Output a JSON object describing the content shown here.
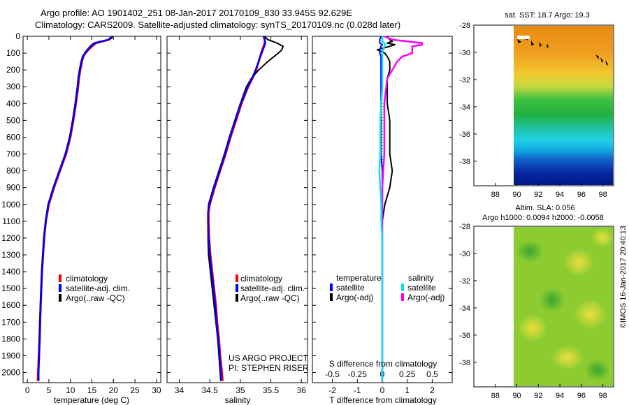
{
  "title": {
    "line1": "Argo profile: AO 1901402_251 08-Jan-2017 20170109_830 33.945S 92.629E",
    "line2": "Climatology: CARS2009. Satellite-adjusted climatology: synTS_20170109.nc (0.028d later)"
  },
  "stamp": "©IMOS 16-Jan-2017 20:40:13",
  "colors": {
    "climatology": "#ff0000",
    "satellite": "#0000ff",
    "argo": "#000000",
    "sal_satellite": "#00e5ee",
    "sal_argo": "#ff00ff"
  },
  "chart_data": [
    {
      "type": "line",
      "name": "temperature",
      "xlabel": "temperature (deg C)",
      "xlim": [
        -1,
        31
      ],
      "ylim": [
        2060,
        0
      ],
      "xticks": [
        "0",
        "5",
        "10",
        "15",
        "20",
        "25",
        "30"
      ],
      "xtick_values": [
        0,
        5,
        10,
        15,
        20,
        25,
        30
      ],
      "yticks": [
        "0",
        "100",
        "200",
        "300",
        "400",
        "500",
        "600",
        "700",
        "800",
        "900",
        "1000",
        "1100",
        "1200",
        "1300",
        "1400",
        "1500",
        "1600",
        "1700",
        "1800",
        "1900",
        "2000"
      ],
      "ytick_values": [
        0,
        100,
        200,
        300,
        400,
        500,
        600,
        700,
        800,
        900,
        1000,
        1100,
        1200,
        1300,
        1400,
        1500,
        1600,
        1700,
        1800,
        1900,
        2000
      ],
      "legend": [
        "climatology",
        "satellite-adj. clim.",
        "Argo(..raw -QC)"
      ],
      "depth": [
        0,
        10,
        20,
        30,
        40,
        50,
        60,
        80,
        100,
        120,
        150,
        200,
        250,
        300,
        400,
        500,
        600,
        700,
        800,
        900,
        1000,
        1100,
        1200,
        1400,
        1600,
        1800,
        2000,
        2050
      ],
      "series": [
        {
          "name": "climatology",
          "values": [
            19.6,
            19.4,
            19.0,
            17.5,
            16.0,
            15.5,
            15.0,
            14.2,
            13.5,
            13.0,
            12.7,
            12.3,
            12.0,
            11.8,
            11.3,
            10.7,
            10.0,
            9.0,
            7.6,
            6.2,
            5.0,
            4.3,
            3.9,
            3.4,
            3.1,
            2.8,
            2.5,
            2.4
          ]
        },
        {
          "name": "satellite",
          "values": [
            19.5,
            19.3,
            18.8,
            17.3,
            15.8,
            15.3,
            14.8,
            14.0,
            13.4,
            12.9,
            12.6,
            12.2,
            11.9,
            11.7,
            11.2,
            10.6,
            9.9,
            8.9,
            7.5,
            6.1,
            4.9,
            4.3,
            3.9,
            3.4,
            3.1,
            2.9,
            2.6,
            2.6
          ]
        },
        {
          "name": "argo",
          "values": [
            19.8,
            19.6,
            19.0,
            17.0,
            15.5,
            15.0,
            14.6,
            13.9,
            13.3,
            12.8,
            12.5,
            12.1,
            11.8,
            11.6,
            11.1,
            10.5,
            9.8,
            8.8,
            7.4,
            6.0,
            4.8,
            4.2,
            3.8,
            3.3,
            3.0,
            2.8,
            2.6,
            2.6
          ]
        }
      ]
    },
    {
      "type": "line",
      "name": "salinity",
      "xlabel": "salinity",
      "xlim": [
        33.8,
        36.1
      ],
      "ylim": [
        2060,
        0
      ],
      "xticks": [
        "34",
        "34.5",
        "35",
        "35.5",
        "36"
      ],
      "xtick_values": [
        34,
        34.5,
        35,
        35.5,
        36
      ],
      "legend": [
        "climatology",
        "satellite-adj. clim.",
        "Argo(..raw -QC)"
      ],
      "annotation": [
        "US ARGO PROJECT",
        "PI: STEPHEN RISER"
      ],
      "depth": [
        0,
        20,
        40,
        60,
        80,
        100,
        150,
        200,
        250,
        300,
        400,
        500,
        600,
        700,
        800,
        900,
        1000,
        1050,
        1100,
        1200,
        1300,
        1400,
        1500,
        1600,
        1700,
        1800,
        1900,
        2000,
        2050
      ],
      "series": [
        {
          "name": "climatology",
          "values": [
            35.38,
            35.4,
            35.4,
            35.38,
            35.36,
            35.34,
            35.3,
            35.26,
            35.2,
            35.13,
            35.02,
            34.93,
            34.84,
            34.76,
            34.67,
            34.58,
            34.5,
            34.48,
            34.48,
            34.49,
            34.51,
            34.54,
            34.57,
            34.6,
            34.62,
            34.65,
            34.67,
            34.7,
            34.71
          ]
        },
        {
          "name": "satellite",
          "values": [
            35.38,
            35.4,
            35.41,
            35.39,
            35.37,
            35.35,
            35.3,
            35.25,
            35.19,
            35.12,
            35.01,
            34.92,
            34.83,
            34.75,
            34.66,
            34.57,
            34.49,
            34.47,
            34.47,
            34.48,
            34.5,
            34.53,
            34.56,
            34.59,
            34.61,
            34.64,
            34.66,
            34.68,
            34.69
          ]
        },
        {
          "name": "argo",
          "values": [
            35.4,
            35.45,
            35.6,
            35.7,
            35.68,
            35.62,
            35.45,
            35.3,
            35.18,
            35.1,
            35.0,
            34.91,
            34.82,
            34.74,
            34.65,
            34.56,
            34.48,
            34.47,
            34.47,
            34.47,
            34.48,
            34.51,
            34.54,
            34.57,
            34.6,
            34.63,
            34.65,
            34.67,
            34.68
          ]
        }
      ]
    },
    {
      "type": "line",
      "name": "difference",
      "xlabel": "T difference from climatology",
      "xlabel_top": "S difference from climatology",
      "xlim": [
        -2.8,
        2.8
      ],
      "ylim": [
        2060,
        0
      ],
      "xticks": [
        "-2",
        "-1",
        "0",
        "1",
        "2"
      ],
      "xtick_values": [
        -2,
        -1,
        0,
        1,
        2
      ],
      "sticks": [
        "-0.5",
        "-0.25",
        "0",
        "0.25",
        "0.5"
      ],
      "stick_values": [
        -0.5,
        -0.25,
        0,
        0.25,
        0.5
      ],
      "s_scale_max": 0.5,
      "legend_headers": [
        "temperature",
        "salinity"
      ],
      "legend": [
        "satellite",
        "Argo(-adj)",
        "satellite",
        "Argo(-adj)"
      ],
      "depth": [
        0,
        20,
        30,
        40,
        50,
        60,
        80,
        100,
        120,
        150,
        200,
        250,
        300,
        400,
        500,
        600,
        700,
        800,
        900,
        1000,
        1100,
        1200,
        1400,
        1600,
        1800,
        2000,
        2050
      ],
      "series": [
        {
          "name": "T satellite",
          "values": [
            -0.05,
            -0.1,
            -0.1,
            -0.1,
            0.0,
            -0.05,
            -0.1,
            -0.1,
            -0.05,
            -0.05,
            -0.05,
            -0.05,
            -0.05,
            -0.05,
            -0.05,
            -0.05,
            -0.05,
            0.0,
            0.0,
            0.0,
            0.0,
            0.0,
            0.0,
            0.0,
            0.0,
            0.0,
            0.0
          ]
        },
        {
          "name": "T argo",
          "values": [
            0.2,
            0.3,
            0.4,
            0.2,
            0.5,
            0.3,
            -0.2,
            0.1,
            0.2,
            0.3,
            0.3,
            0.2,
            0.2,
            0.2,
            0.3,
            0.3,
            0.3,
            0.4,
            0.3,
            0.1,
            0.0,
            0.0,
            0.0,
            0.0,
            0.0,
            0.0,
            0.0
          ]
        },
        {
          "name": "S satellite",
          "values": [
            0.0,
            0.0,
            0.0,
            0.02,
            0.03,
            0.02,
            0.01,
            0.0,
            0.0,
            0.0,
            0.0,
            0.0,
            0.0,
            -0.01,
            -0.02,
            -0.02,
            -0.02,
            -0.03,
            -0.02,
            -0.01,
            -0.01,
            0.0,
            0.0,
            0.0,
            0.0,
            0.0,
            0.0
          ]
        },
        {
          "name": "S argo",
          "values": [
            0.02,
            0.1,
            0.25,
            0.4,
            0.4,
            0.3,
            0.3,
            0.3,
            0.2,
            0.15,
            0.1,
            0.05,
            0.04,
            0.02,
            0.02,
            0.02,
            0.02,
            0.01,
            0.0,
            0.0,
            0.0,
            0.0,
            0.0,
            0.0,
            0.0,
            0.0,
            0.0
          ]
        }
      ]
    },
    {
      "type": "heatmap",
      "name": "sst_map",
      "title": "sat. SST: 18.7  Argo: 19.3",
      "xlim": [
        86,
        99
      ],
      "ylim": [
        -39.8,
        -28
      ],
      "xticks": [
        "88",
        "90",
        "92",
        "94",
        "96",
        "98"
      ],
      "xtick_values": [
        88,
        90,
        92,
        94,
        96,
        98
      ],
      "yticks": [
        "-28",
        "-30",
        "-32",
        "-34",
        "-36",
        "-38"
      ],
      "ytick_values": [
        -28,
        -30,
        -32,
        -34,
        -36,
        -38
      ],
      "data_lon_start": 90,
      "argo_position": [
        92.629,
        -33.945
      ]
    },
    {
      "type": "heatmap",
      "name": "sla_map",
      "title": "Altim. SLA: 0.056",
      "subtitle": "Argo h1000: 0.0094 h2000: -0.0058",
      "xlim": [
        86,
        99
      ],
      "ylim": [
        -39.8,
        -28
      ],
      "xticks": [
        "88",
        "90",
        "92",
        "94",
        "96",
        "98"
      ],
      "xtick_values": [
        88,
        90,
        92,
        94,
        96,
        98
      ],
      "yticks": [
        "-28",
        "-30",
        "-32",
        "-34",
        "-36",
        "-38"
      ],
      "ytick_values": [
        -28,
        -30,
        -32,
        -34,
        -36,
        -38
      ],
      "data_lon_start": 90
    }
  ]
}
